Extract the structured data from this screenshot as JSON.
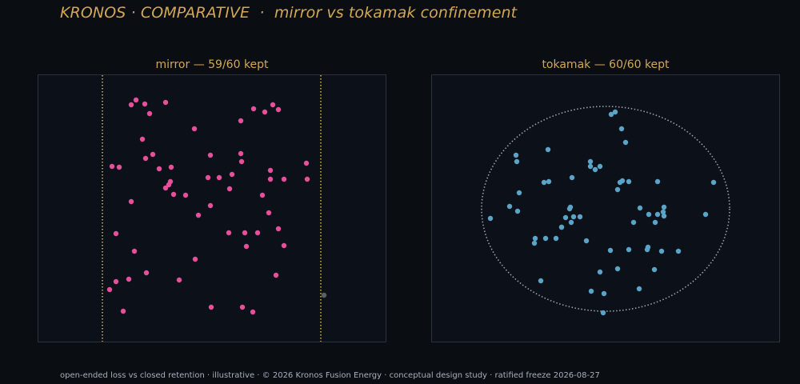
{
  "header": {
    "title": "KRONOS · COMPARATIVE  ·  mirror vs tokamak confinement"
  },
  "footer": {
    "text": "open-ended loss vs closed retention · illustrative · © 2026 Kronos Fusion Energy · conceptual design study · ratified freeze 2026-08-27"
  },
  "colors": {
    "background": "#0a0d12",
    "panel": "#0c1018",
    "title": "#d2a856",
    "mirror_points": "#e6509a",
    "tokamak_points": "#5aa4c8",
    "lost_point": "#5a5f66",
    "mirror_boundary": "#d2a856",
    "tokamak_boundary": "#9aa3ad"
  },
  "chart_data": [
    {
      "type": "scatter",
      "title": "mirror — 59/60 kept",
      "xlim": [
        0,
        434
      ],
      "ylim": [
        0,
        333
      ],
      "boundary": {
        "kind": "vertical-lines",
        "x": [
          80,
          353
        ]
      },
      "lost_points": [
        {
          "x": 357,
          "y": 58
        }
      ],
      "points": [
        {
          "x": 116,
          "y": 296
        },
        {
          "x": 122,
          "y": 302
        },
        {
          "x": 133,
          "y": 297
        },
        {
          "x": 159,
          "y": 299
        },
        {
          "x": 139,
          "y": 285
        },
        {
          "x": 269,
          "y": 291
        },
        {
          "x": 300,
          "y": 290
        },
        {
          "x": 293,
          "y": 296
        },
        {
          "x": 283,
          "y": 287
        },
        {
          "x": 195,
          "y": 266
        },
        {
          "x": 253,
          "y": 276
        },
        {
          "x": 130,
          "y": 253
        },
        {
          "x": 92,
          "y": 219
        },
        {
          "x": 101,
          "y": 218
        },
        {
          "x": 134,
          "y": 229
        },
        {
          "x": 143,
          "y": 234
        },
        {
          "x": 151,
          "y": 216
        },
        {
          "x": 166,
          "y": 218
        },
        {
          "x": 253,
          "y": 235
        },
        {
          "x": 254,
          "y": 225
        },
        {
          "x": 165,
          "y": 200
        },
        {
          "x": 163,
          "y": 196
        },
        {
          "x": 159,
          "y": 192
        },
        {
          "x": 169,
          "y": 184
        },
        {
          "x": 184,
          "y": 183
        },
        {
          "x": 212,
          "y": 205
        },
        {
          "x": 226,
          "y": 205
        },
        {
          "x": 242,
          "y": 209
        },
        {
          "x": 239,
          "y": 191
        },
        {
          "x": 290,
          "y": 214
        },
        {
          "x": 290,
          "y": 203
        },
        {
          "x": 307,
          "y": 203
        },
        {
          "x": 335,
          "y": 223
        },
        {
          "x": 336,
          "y": 203
        },
        {
          "x": 116,
          "y": 175
        },
        {
          "x": 215,
          "y": 170
        },
        {
          "x": 200,
          "y": 158
        },
        {
          "x": 280,
          "y": 183
        },
        {
          "x": 288,
          "y": 161
        },
        {
          "x": 97,
          "y": 135
        },
        {
          "x": 238,
          "y": 136
        },
        {
          "x": 258,
          "y": 136
        },
        {
          "x": 274,
          "y": 136
        },
        {
          "x": 260,
          "y": 119
        },
        {
          "x": 300,
          "y": 141
        },
        {
          "x": 307,
          "y": 120
        },
        {
          "x": 120,
          "y": 113
        },
        {
          "x": 196,
          "y": 103
        },
        {
          "x": 176,
          "y": 77
        },
        {
          "x": 297,
          "y": 83
        },
        {
          "x": 113,
          "y": 78
        },
        {
          "x": 135,
          "y": 86
        },
        {
          "x": 89,
          "y": 65
        },
        {
          "x": 97,
          "y": 75
        },
        {
          "x": 106,
          "y": 38
        },
        {
          "x": 216,
          "y": 43
        },
        {
          "x": 255,
          "y": 43
        },
        {
          "x": 268,
          "y": 37
        },
        {
          "x": 215,
          "y": 233
        }
      ]
    },
    {
      "type": "scatter",
      "title": "tokamak — 60/60 kept",
      "xlim": [
        0,
        434
      ],
      "ylim": [
        0,
        333
      ],
      "boundary": {
        "kind": "ellipse",
        "cx": 217,
        "cy": 166,
        "rx": 155,
        "ry": 128
      },
      "lost_points": [],
      "points": [
        {
          "x": 224,
          "y": 284
        },
        {
          "x": 229,
          "y": 287
        },
        {
          "x": 237,
          "y": 266
        },
        {
          "x": 242,
          "y": 249
        },
        {
          "x": 145,
          "y": 240
        },
        {
          "x": 198,
          "y": 225
        },
        {
          "x": 198,
          "y": 219
        },
        {
          "x": 204,
          "y": 215
        },
        {
          "x": 210,
          "y": 219
        },
        {
          "x": 105,
          "y": 233
        },
        {
          "x": 106,
          "y": 225
        },
        {
          "x": 146,
          "y": 200
        },
        {
          "x": 140,
          "y": 199
        },
        {
          "x": 175,
          "y": 205
        },
        {
          "x": 235,
          "y": 199
        },
        {
          "x": 238,
          "y": 201
        },
        {
          "x": 246,
          "y": 200
        },
        {
          "x": 232,
          "y": 190
        },
        {
          "x": 282,
          "y": 200
        },
        {
          "x": 352,
          "y": 199
        },
        {
          "x": 109,
          "y": 186
        },
        {
          "x": 97,
          "y": 169
        },
        {
          "x": 107,
          "y": 163
        },
        {
          "x": 73,
          "y": 154
        },
        {
          "x": 173,
          "y": 168
        },
        {
          "x": 172,
          "y": 166
        },
        {
          "x": 167,
          "y": 155
        },
        {
          "x": 177,
          "y": 156
        },
        {
          "x": 185,
          "y": 156
        },
        {
          "x": 162,
          "y": 143
        },
        {
          "x": 174,
          "y": 149
        },
        {
          "x": 260,
          "y": 167
        },
        {
          "x": 271,
          "y": 159
        },
        {
          "x": 289,
          "y": 162
        },
        {
          "x": 282,
          "y": 159
        },
        {
          "x": 290,
          "y": 168
        },
        {
          "x": 252,
          "y": 149
        },
        {
          "x": 279,
          "y": 149
        },
        {
          "x": 290,
          "y": 157
        },
        {
          "x": 342,
          "y": 159
        },
        {
          "x": 128,
          "y": 123
        },
        {
          "x": 129,
          "y": 129
        },
        {
          "x": 142,
          "y": 129
        },
        {
          "x": 155,
          "y": 129
        },
        {
          "x": 162,
          "y": 143
        },
        {
          "x": 269,
          "y": 115
        },
        {
          "x": 270,
          "y": 118
        },
        {
          "x": 287,
          "y": 113
        },
        {
          "x": 308,
          "y": 113
        },
        {
          "x": 278,
          "y": 90
        },
        {
          "x": 193,
          "y": 126
        },
        {
          "x": 210,
          "y": 87
        },
        {
          "x": 215,
          "y": 60
        },
        {
          "x": 199,
          "y": 63
        },
        {
          "x": 214,
          "y": 36
        },
        {
          "x": 136,
          "y": 76
        },
        {
          "x": 259,
          "y": 66
        },
        {
          "x": 223,
          "y": 114
        },
        {
          "x": 246,
          "y": 115
        },
        {
          "x": 232,
          "y": 91
        }
      ]
    }
  ]
}
